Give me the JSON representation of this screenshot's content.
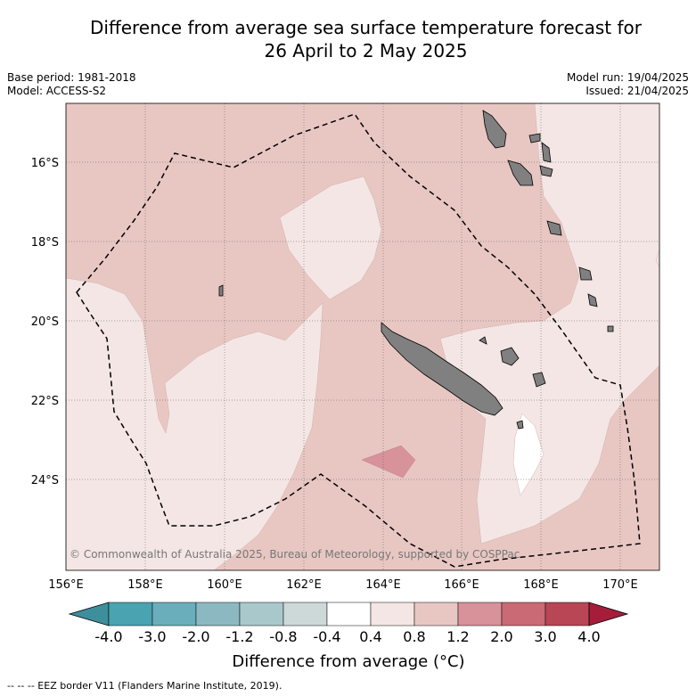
{
  "title": {
    "line1": "Difference from average sea surface temperature forecast for",
    "line2": "26 April to 2 May 2025"
  },
  "meta": {
    "base_period": "Base period: 1981-2018",
    "model": "Model: ACCESS-S2",
    "model_run": "Model run: 19/04/2025",
    "issued": "Issued: 21/04/2025"
  },
  "map": {
    "lat_ticks": [
      "16°S",
      "18°S",
      "20°S",
      "22°S",
      "24°S"
    ],
    "lon_ticks": [
      "156°E",
      "158°E",
      "160°E",
      "162°E",
      "164°E",
      "166°E",
      "168°E",
      "170°E"
    ],
    "copyright": "© Commonwealth of Australia 2025, Bureau of Meteorology, supported by COSPPac",
    "colors": {
      "anomaly_0_4_0_8": "#f4e6e4",
      "anomaly_0_8_1_2": "#e8c7c3",
      "anomaly_1_2_2_0": "#d8929a",
      "anomaly_neutral": "#ffffff",
      "land": "#808080",
      "eez": "#000000"
    }
  },
  "colorbar": {
    "labels": [
      "-4.0",
      "-3.0",
      "-2.0",
      "-1.2",
      "-0.8",
      "-0.4",
      "0.4",
      "0.8",
      "1.2",
      "2.0",
      "3.0",
      "4.0"
    ],
    "colors": [
      "#3d8f9c",
      "#4aa3b1",
      "#6aaebb",
      "#8cb8c2",
      "#a9c8cc",
      "#cdd8d9",
      "#ffffff",
      "#f4e6e4",
      "#e8c7c3",
      "#d8929a",
      "#c96a74",
      "#b84655",
      "#a51d3a"
    ],
    "title": "Difference from average (°C)"
  },
  "footnote": "--  --  -- EEZ border V11 (Flanders Marine Institute, 2019)."
}
